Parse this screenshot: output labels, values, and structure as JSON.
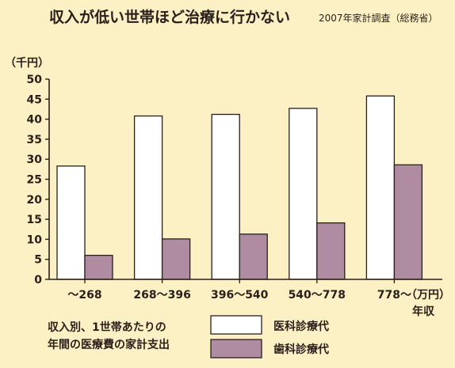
{
  "chart_data": {
    "type": "bar",
    "title": "収入が低い世帯ほど治療に行かない",
    "source": "2007年家計調査（総務省）",
    "y_unit": "（千円）",
    "x_unit": "（万円）",
    "xlabel": "年収",
    "ylim": [
      0,
      50
    ],
    "yticks": [
      0,
      5,
      10,
      15,
      20,
      25,
      30,
      35,
      40,
      45,
      50
    ],
    "categories": [
      "～268",
      "268～396",
      "396～540",
      "540～778",
      "778～"
    ],
    "series": [
      {
        "name": "医科診療代",
        "values": [
          28.3,
          40.8,
          41.2,
          42.7,
          45.8
        ],
        "color": "#ffffff"
      },
      {
        "name": "歯科診療代",
        "values": [
          6.0,
          10.1,
          11.3,
          14.1,
          28.6
        ],
        "color": "#b08ca2"
      }
    ],
    "legend_note": [
      "収入別、1世帯あたりの",
      "年間の医療費の家計支出"
    ],
    "grid": false,
    "legend_position": "bottom"
  }
}
